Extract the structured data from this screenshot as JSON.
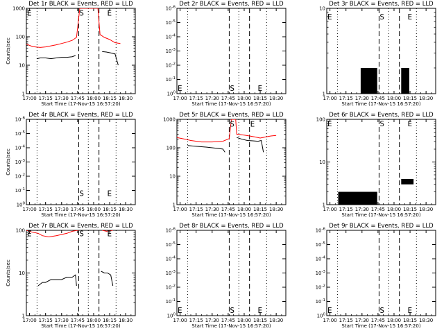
{
  "chart_data": [
    {
      "type": "line",
      "title": "Det 1r BLACK = Events, RED = LLD",
      "xlabel": "Start Time (17-Nov-15 16:57:20)",
      "ylabel": "Counts/sec",
      "x_ticks": [
        "17:00",
        "17:15",
        "17:30",
        "17:45",
        "18:00",
        "18:15",
        "18:30"
      ],
      "y_ticks": [
        "1",
        "10",
        "100",
        "1000"
      ],
      "xlim": [
        "16:57",
        "18:39"
      ],
      "ylim": [
        1,
        1000
      ],
      "yscale": "log",
      "dotted_lines": [
        "17:07",
        "17:55",
        "18:21"
      ],
      "dashed_lines": [
        "17:46",
        "18:05"
      ],
      "markers": [
        {
          "text": "E",
          "x": "16:57",
          "y": 700
        },
        {
          "text": "S",
          "x": "17:46",
          "y": 700
        },
        {
          "text": "E",
          "x": "18:12",
          "y": 700
        }
      ],
      "series": [
        {
          "color": "#000000",
          "points": [
            [
              "17:07",
              17
            ],
            [
              "17:10",
              18
            ],
            [
              "17:15",
              18
            ],
            [
              "17:20",
              17
            ],
            [
              "17:25",
              18
            ],
            [
              "17:30",
              19
            ],
            [
              "17:35",
              19
            ],
            [
              "17:40",
              20
            ],
            [
              "17:43",
              22
            ]
          ],
          "points2": [
            [
              "18:08",
              30
            ],
            [
              "18:12",
              29
            ],
            [
              "18:16",
              27
            ],
            [
              "18:20",
              25
            ],
            [
              "18:23",
              10
            ]
          ]
        },
        {
          "color": "#ff0000",
          "points": [
            [
              "16:57",
              55
            ],
            [
              "17:03",
              45
            ],
            [
              "17:10",
              42
            ],
            [
              "17:15",
              44
            ],
            [
              "17:20",
              48
            ],
            [
              "17:25",
              52
            ],
            [
              "17:30",
              58
            ],
            [
              "17:35",
              65
            ],
            [
              "17:40",
              75
            ],
            [
              "17:44",
              95
            ],
            [
              "17:47",
              1000
            ],
            [
              "17:55",
              1000
            ],
            [
              "18:00",
              1000
            ],
            [
              "18:04",
              1000
            ],
            [
              "18:06",
              120
            ],
            [
              "18:10",
              95
            ],
            [
              "18:15",
              80
            ],
            [
              "18:20",
              62
            ],
            [
              "18:25",
              58
            ]
          ]
        }
      ]
    },
    {
      "type": "line",
      "title": "Det 2r BLACK = Events, RED = LLD",
      "xlabel": "Start Time (17-Nov-15 16:57:20)",
      "ylabel": "",
      "x_ticks": [
        "17:00",
        "17:15",
        "17:30",
        "17:45",
        "18:00",
        "18:15",
        "18:30"
      ],
      "y_ticks": [
        "10^0",
        "10^-1",
        "10^-2",
        "10^-3",
        "10^-4",
        "10^-5",
        "10^-6"
      ],
      "xlim": [
        "16:57",
        "18:39"
      ],
      "ylim": [
        0,
        6
      ],
      "dotted_lines": [
        "17:07",
        "17:55",
        "18:21"
      ],
      "dashed_lines": [
        "17:46",
        "18:05"
      ],
      "markers": [
        {
          "text": "E",
          "x": "16:57",
          "y": 0.4
        },
        {
          "text": "S",
          "x": "17:46",
          "y": 0.4
        },
        {
          "text": "E",
          "x": "18:12",
          "y": 0.4
        }
      ],
      "series": []
    },
    {
      "type": "line",
      "title": "Det 3r BLACK = Events, RED = LLD",
      "xlabel": "Start Time (17-Nov-15 16:57:20)",
      "ylabel": "",
      "x_ticks": [
        "17:00",
        "17:15",
        "17:30",
        "17:45",
        "18:00",
        "18:15",
        "18:30"
      ],
      "y_ticks": [
        "1",
        "10"
      ],
      "xlim": [
        "16:57",
        "18:39"
      ],
      "ylim": [
        1,
        10
      ],
      "yscale": "log",
      "dotted_lines": [
        "17:07",
        "17:55",
        "18:21"
      ],
      "dashed_lines": [
        "17:46",
        "18:05"
      ],
      "markers": [
        {
          "text": "E",
          "x": "16:57",
          "y": 8
        },
        {
          "text": "S",
          "x": "17:46",
          "y": 8
        },
        {
          "text": "E",
          "x": "18:12",
          "y": 8
        }
      ],
      "series": [
        {
          "color": "#000000",
          "spikes": {
            "start": "17:29",
            "end": "17:44",
            "low": 1,
            "high": 2
          },
          "spikes2": {
            "start": "18:07",
            "end": "18:14",
            "low": 1,
            "high": 2
          }
        }
      ]
    },
    {
      "type": "line",
      "title": "Det 4r BLACK = Events, RED = LLD",
      "xlabel": "Start Time (17-Nov-15 16:57:20)",
      "ylabel": "Counts/sec",
      "x_ticks": [
        "17:00",
        "17:15",
        "17:30",
        "17:45",
        "18:00",
        "18:15",
        "18:30"
      ],
      "y_ticks": [
        "10^0",
        "10^-1",
        "10^-2",
        "10^-3",
        "10^-4",
        "10^-5",
        "10^-6"
      ],
      "xlim": [
        "16:57",
        "18:39"
      ],
      "ylim": [
        0,
        6
      ],
      "dotted_lines": [
        "17:07",
        "17:55",
        "18:21"
      ],
      "dashed_lines": [
        "17:46",
        "18:05"
      ],
      "markers": [
        {
          "text": "S",
          "x": "17:46",
          "y": 0.8
        },
        {
          "text": "E",
          "x": "18:12",
          "y": 0.8
        }
      ],
      "series": []
    },
    {
      "type": "line",
      "title": "Det 5r BLACK = Events, RED = LLD",
      "xlabel": "Start Time (17-Nov-15 16:57:20)",
      "ylabel": "",
      "x_ticks": [
        "17:00",
        "17:15",
        "17:30",
        "17:45",
        "18:00",
        "18:15",
        "18:30"
      ],
      "y_ticks": [
        "1",
        "10",
        "100",
        "1000"
      ],
      "xlim": [
        "16:57",
        "18:39"
      ],
      "ylim": [
        1,
        1000
      ],
      "yscale": "log",
      "dotted_lines": [
        "17:07",
        "17:55",
        "18:21"
      ],
      "dashed_lines": [
        "17:46",
        "18:05"
      ],
      "markers": [
        {
          "text": "S",
          "x": "17:46",
          "y": 700
        },
        {
          "text": "E",
          "x": "18:05",
          "y": 700
        }
      ],
      "series": [
        {
          "color": "#000000",
          "points": [
            [
              "17:07",
              120
            ],
            [
              "17:12",
              115
            ],
            [
              "17:18",
              110
            ],
            [
              "17:25",
              105
            ],
            [
              "17:30",
              100
            ],
            [
              "17:35",
              95
            ],
            [
              "17:40",
              90
            ],
            [
              "17:42",
              70
            ]
          ],
          "points2": [
            [
              "17:53",
              230
            ],
            [
              "17:58",
              200
            ],
            [
              "18:03",
              180
            ],
            [
              "18:08",
              175
            ],
            [
              "18:13",
              170
            ],
            [
              "18:16",
              180
            ],
            [
              "18:18",
              70
            ]
          ]
        },
        {
          "color": "#ff0000",
          "points": [
            [
              "16:57",
              230
            ],
            [
              "17:05",
              200
            ],
            [
              "17:10",
              180
            ],
            [
              "17:20",
              160
            ],
            [
              "17:30",
              160
            ],
            [
              "17:40",
              170
            ],
            [
              "17:46",
              210
            ],
            [
              "17:48",
              1000
            ],
            [
              "17:52",
              1000
            ],
            [
              "17:53",
              300
            ],
            [
              "18:00",
              280
            ],
            [
              "18:05",
              260
            ],
            [
              "18:10",
              240
            ],
            [
              "18:15",
              220
            ],
            [
              "18:20",
              240
            ],
            [
              "18:25",
              260
            ],
            [
              "18:30",
              270
            ]
          ]
        }
      ]
    },
    {
      "type": "line",
      "title": "Det 6r BLACK = Events, RED = LLD",
      "xlabel": "Start Time (17-Nov-15 16:57:20)",
      "ylabel": "",
      "x_ticks": [
        "17:00",
        "17:15",
        "17:30",
        "17:45",
        "18:00",
        "18:15",
        "18:30"
      ],
      "y_ticks": [
        "1",
        "10",
        "100"
      ],
      "xlim": [
        "16:57",
        "18:39"
      ],
      "ylim": [
        1,
        100
      ],
      "yscale": "log",
      "dotted_lines": [
        "17:07",
        "17:55",
        "18:21"
      ],
      "dashed_lines": [
        "17:46",
        "18:05"
      ],
      "markers": [
        {
          "text": "E",
          "x": "16:57",
          "y": 80
        },
        {
          "text": "S",
          "x": "17:46",
          "y": 80
        },
        {
          "text": "E",
          "x": "18:12",
          "y": 80
        }
      ],
      "series": [
        {
          "color": "#000000",
          "spikes": {
            "start": "17:08",
            "end": "17:44",
            "low": 1,
            "high": 2
          },
          "spikes2": {
            "start": "18:07",
            "end": "18:18",
            "low": 3,
            "high": 4
          }
        }
      ]
    },
    {
      "type": "line",
      "title": "Det 7r BLACK = Events, RED = LLD",
      "xlabel": "Start Time (17-Nov-15 16:57:20)",
      "ylabel": "Counts/sec",
      "x_ticks": [
        "17:00",
        "17:15",
        "17:30",
        "17:45",
        "18:00",
        "18:15",
        "18:30"
      ],
      "y_ticks": [
        "1",
        "10",
        "100"
      ],
      "xlim": [
        "16:57",
        "18:39"
      ],
      "ylim": [
        1,
        100
      ],
      "yscale": "log",
      "dotted_lines": [
        "17:07",
        "17:55",
        "18:21"
      ],
      "dashed_lines": [
        "17:46",
        "18:05"
      ],
      "markers": [
        {
          "text": "E",
          "x": "16:57",
          "y": 85
        },
        {
          "text": "S",
          "x": "17:46",
          "y": 85
        },
        {
          "text": "E",
          "x": "18:12",
          "y": 85
        }
      ],
      "series": [
        {
          "color": "#000000",
          "points": [
            [
              "17:08",
              5
            ],
            [
              "17:12",
              6
            ],
            [
              "17:15",
              6
            ],
            [
              "17:20",
              7
            ],
            [
              "17:25",
              7
            ],
            [
              "17:30",
              7
            ],
            [
              "17:35",
              8
            ],
            [
              "17:40",
              8
            ],
            [
              "17:43",
              9
            ],
            [
              "17:44",
              5
            ]
          ],
          "points2": [
            [
              "18:07",
              11
            ],
            [
              "18:10",
              10
            ],
            [
              "18:13",
              10
            ],
            [
              "18:16",
              9
            ],
            [
              "18:18",
              5
            ]
          ]
        },
        {
          "color": "#ff0000",
          "points": [
            [
              "16:57",
              100
            ],
            [
              "17:03",
              90
            ],
            [
              "17:08",
              85
            ],
            [
              "17:12",
              75
            ],
            [
              "17:18",
              70
            ],
            [
              "17:25",
              75
            ],
            [
              "17:30",
              80
            ],
            [
              "17:35",
              85
            ],
            [
              "17:40",
              95
            ],
            [
              "17:45",
              100
            ],
            [
              "17:46",
              100
            ]
          ],
          "points2": [
            [
              "18:08",
              100
            ],
            [
              "18:12",
              95
            ],
            [
              "18:18",
              100
            ]
          ]
        }
      ]
    },
    {
      "type": "line",
      "title": "Det 8r BLACK = Events, RED = LLD",
      "xlabel": "Start Time (17-Nov-15 16:57:20)",
      "ylabel": "",
      "x_ticks": [
        "17:00",
        "17:15",
        "17:30",
        "17:45",
        "18:00",
        "18:15",
        "18:30"
      ],
      "y_ticks": [
        "10^0",
        "10^-1",
        "10^-2",
        "10^-3",
        "10^-4",
        "10^-5",
        "10^-6"
      ],
      "xlim": [
        "16:57",
        "18:39"
      ],
      "ylim": [
        0,
        6
      ],
      "dotted_lines": [
        "17:07",
        "17:55",
        "18:21"
      ],
      "dashed_lines": [
        "17:46",
        "18:05"
      ],
      "markers": [
        {
          "text": "E",
          "x": "16:57",
          "y": 0.4
        },
        {
          "text": "S",
          "x": "17:46",
          "y": 0.4
        },
        {
          "text": "E",
          "x": "18:12",
          "y": 0.4
        }
      ],
      "series": []
    },
    {
      "type": "line",
      "title": "Det 9r BLACK = Events, RED = LLD",
      "xlabel": "Start Time (17-Nov-15 16:57:20)",
      "ylabel": "",
      "x_ticks": [
        "17:00",
        "17:15",
        "17:30",
        "17:45",
        "18:00",
        "18:15",
        "18:30"
      ],
      "y_ticks": [
        "10^0",
        "10^-1",
        "10^-2",
        "10^-3",
        "10^-4",
        "10^-5",
        "10^-6"
      ],
      "xlim": [
        "16:57",
        "18:39"
      ],
      "ylim": [
        0,
        6
      ],
      "dotted_lines": [
        "17:07",
        "17:55",
        "18:21"
      ],
      "dashed_lines": [
        "17:46",
        "18:05"
      ],
      "markers": [
        {
          "text": "E",
          "x": "16:57",
          "y": 0.4
        },
        {
          "text": "S",
          "x": "17:46",
          "y": 0.4
        },
        {
          "text": "E",
          "x": "18:12",
          "y": 0.4
        }
      ],
      "series": []
    }
  ]
}
